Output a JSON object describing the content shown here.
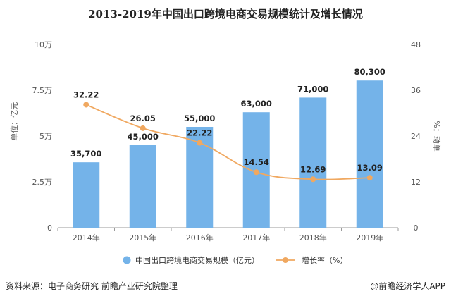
{
  "title": "2013-2019年中国出口跨境电商交易规模统计及增长情况",
  "source": "资料来源：电子商务研究 前瞻产业研究院整理",
  "credit": "@前瞻经济学人APP",
  "chart_data": {
    "type": "bar",
    "categories": [
      "2014年",
      "2015年",
      "2016年",
      "2017年",
      "2018年",
      "2019年"
    ],
    "series": [
      {
        "name": "中国出口跨境电商交易规模（亿元）",
        "type": "bar",
        "axis": "left",
        "color": "#74b3e9",
        "values": [
          35700,
          45000,
          55000,
          63000,
          71000,
          80300
        ],
        "labels": [
          "35,700",
          "45,000",
          "55,000",
          "63,000",
          "71,000",
          "80,300"
        ]
      },
      {
        "name": "增长率（%）",
        "type": "line",
        "axis": "right",
        "color": "#f0a860",
        "values": [
          32.22,
          26.05,
          22.22,
          14.54,
          12.69,
          13.09
        ],
        "labels": [
          "32.22",
          "26.05",
          "22.22",
          "14.54",
          "12.69",
          "13.09"
        ]
      }
    ],
    "y_left": {
      "label": "单位：亿元",
      "ylim": [
        0,
        100000
      ],
      "ticks": [
        0,
        25000,
        50000,
        75000,
        100000
      ],
      "tick_labels": [
        "0",
        "2.5万",
        "5万",
        "7.5万",
        "10万"
      ]
    },
    "y_right": {
      "label": "%：动单",
      "ylim": [
        0,
        48
      ],
      "ticks": [
        0,
        12,
        24,
        36,
        48
      ],
      "tick_labels": [
        "0",
        "12",
        "24",
        "36",
        "48"
      ]
    },
    "grid": false,
    "legend_position": "bottom"
  }
}
